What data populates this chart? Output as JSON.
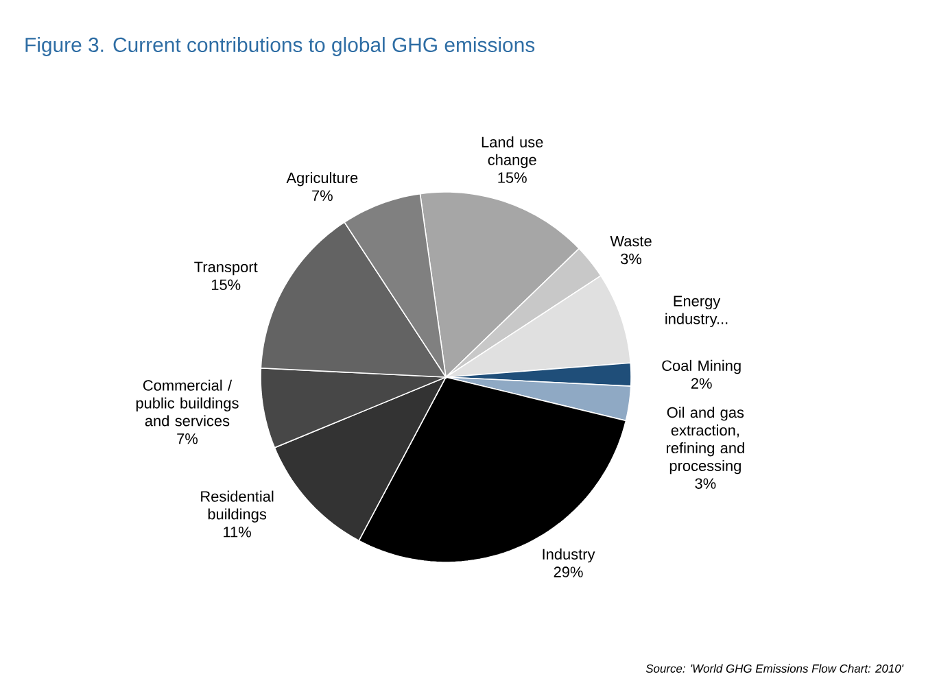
{
  "chart_data": {
    "type": "pie",
    "title": "Figure 3. Current contributions to global GHG emissions",
    "categories": [
      "Land use change",
      "Waste",
      "Energy industry...",
      "Coal Mining",
      "Oil and gas extraction, refining and processing",
      "Industry",
      "Residential buildings",
      "Commercial / public buildings and services",
      "Transport",
      "Agriculture"
    ],
    "values": [
      15,
      3,
      8,
      2,
      3,
      29,
      11,
      7,
      15,
      7
    ],
    "colors": [
      "#a6a6a6",
      "#c8c8c8",
      "#e0e0e0",
      "#1f4e79",
      "#8fa9c4",
      "#000000",
      "#333333",
      "#474747",
      "#636363",
      "#808080"
    ],
    "value_labels": [
      "15%",
      "3%",
      null,
      "2%",
      "3%",
      "29%",
      "11%",
      "7%",
      "15%",
      "7%"
    ],
    "annotations": [
      "Source: 'World GHG Emissions Flow Chart: 2010'"
    ]
  }
}
